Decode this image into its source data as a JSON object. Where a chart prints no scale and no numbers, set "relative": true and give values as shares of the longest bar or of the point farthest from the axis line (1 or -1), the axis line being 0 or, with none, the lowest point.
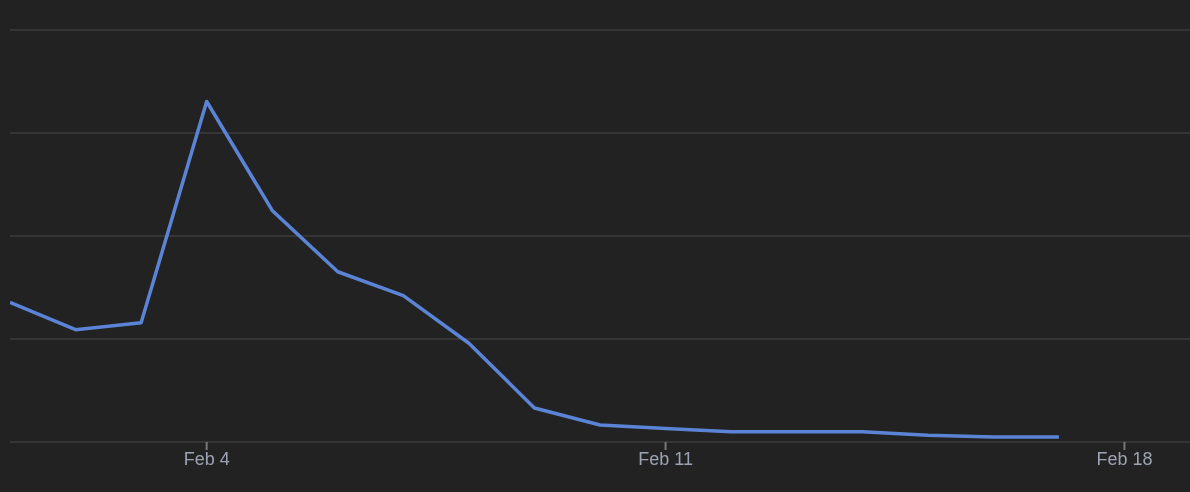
{
  "chart_data": {
    "type": "line",
    "relative": true,
    "x": [
      "--02-01",
      "--02-02",
      "--02-03",
      "--02-04",
      "--02-05",
      "--02-06",
      "--02-07",
      "--02-08",
      "--02-09",
      "--02-10",
      "--02-11",
      "--02-12",
      "--02-13",
      "--02-14",
      "--02-15",
      "--02-16",
      "--02-17"
    ],
    "series": [
      {
        "color": "#5b84d6",
        "values": [
          0.41,
          0.33,
          0.35,
          1,
          0.68,
          0.5,
          0.43,
          0.29,
          0.1,
          0.05,
          0.04,
          0.03,
          0.03,
          0.03,
          0.02,
          0.015,
          0.015
        ]
      }
    ],
    "xlim": [
      "--02-01",
      "--02-19"
    ],
    "xticks": [
      {
        "value": "--02-04",
        "label": "Feb 4"
      },
      {
        "value": "--02-11",
        "label": "Feb 11"
      },
      {
        "value": "--02-18",
        "label": "Feb 18"
      }
    ],
    "grid": "y",
    "legend": false,
    "line_style": "solid"
  }
}
